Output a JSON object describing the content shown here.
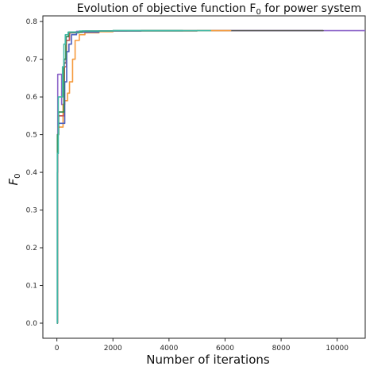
{
  "chart_data": {
    "type": "line",
    "title": "Evolution of objective function F",
    "title_sub": "0",
    "title_suffix": " for power system",
    "xlabel": "Number of iterations",
    "ylabel_main": "F",
    "ylabel_sub": "0",
    "xlim": [
      -500,
      11000
    ],
    "ylim": [
      -0.04,
      0.815
    ],
    "xticks": [
      0,
      2000,
      4000,
      6000,
      8000,
      10000
    ],
    "yticks": [
      0.0,
      0.1,
      0.2,
      0.3,
      0.4,
      0.5,
      0.6,
      0.7,
      0.8
    ],
    "xtick_labels": [
      "0",
      "2000",
      "4000",
      "6000",
      "8000",
      "10000"
    ],
    "ytick_labels": [
      "0.0",
      "0.1",
      "0.2",
      "0.3",
      "0.4",
      "0.5",
      "0.6",
      "0.7",
      "0.8"
    ],
    "grid": false,
    "legend": "none",
    "series": [
      {
        "color": "#8c64c8",
        "points": [
          [
            0,
            0
          ],
          [
            15,
            0.4
          ],
          [
            30,
            0.66
          ],
          [
            150,
            0.66
          ],
          [
            170,
            0.58
          ],
          [
            200,
            0.58
          ],
          [
            260,
            0.7
          ],
          [
            330,
            0.76
          ],
          [
            420,
            0.77
          ],
          [
            700,
            0.774
          ],
          [
            1500,
            0.775
          ],
          [
            3000,
            0.776
          ],
          [
            11000,
            0.776
          ]
        ]
      },
      {
        "color": "#555555",
        "points": [
          [
            0,
            0
          ],
          [
            20,
            0.5
          ],
          [
            60,
            0.55
          ],
          [
            200,
            0.55
          ],
          [
            260,
            0.69
          ],
          [
            330,
            0.75
          ],
          [
            450,
            0.77
          ],
          [
            800,
            0.774
          ],
          [
            2000,
            0.775
          ],
          [
            5000,
            0.776
          ],
          [
            9500,
            0.777
          ]
        ]
      },
      {
        "color": "#f59a3c",
        "points": [
          [
            0,
            0
          ],
          [
            20,
            0.5
          ],
          [
            50,
            0.52
          ],
          [
            180,
            0.52
          ],
          [
            220,
            0.58
          ],
          [
            280,
            0.59
          ],
          [
            380,
            0.61
          ],
          [
            450,
            0.64
          ],
          [
            560,
            0.7
          ],
          [
            650,
            0.75
          ],
          [
            800,
            0.765
          ],
          [
            1000,
            0.77
          ],
          [
            1500,
            0.773
          ],
          [
            2000,
            0.775
          ],
          [
            3000,
            0.776
          ],
          [
            6200,
            0.777
          ]
        ]
      },
      {
        "color": "#d15a5a",
        "points": [
          [
            0,
            0
          ],
          [
            20,
            0.5
          ],
          [
            60,
            0.55
          ],
          [
            220,
            0.55
          ],
          [
            270,
            0.68
          ],
          [
            340,
            0.75
          ],
          [
            450,
            0.772
          ],
          [
            1000,
            0.775
          ],
          [
            2500,
            0.776
          ]
        ]
      },
      {
        "color": "#4a5fc0",
        "points": [
          [
            0,
            0
          ],
          [
            20,
            0.5
          ],
          [
            60,
            0.53
          ],
          [
            220,
            0.53
          ],
          [
            280,
            0.64
          ],
          [
            350,
            0.72
          ],
          [
            430,
            0.74
          ],
          [
            520,
            0.765
          ],
          [
            700,
            0.772
          ],
          [
            1500,
            0.775
          ],
          [
            3000,
            0.776
          ]
        ]
      },
      {
        "color": "#2f8a4a",
        "points": [
          [
            0,
            0
          ],
          [
            20,
            0.5
          ],
          [
            60,
            0.56
          ],
          [
            200,
            0.56
          ],
          [
            250,
            0.7
          ],
          [
            320,
            0.76
          ],
          [
            420,
            0.772
          ],
          [
            900,
            0.775
          ],
          [
            2000,
            0.776
          ],
          [
            4500,
            0.776
          ]
        ]
      },
      {
        "color": "#3fb8a4",
        "points": [
          [
            0,
            0
          ],
          [
            15,
            0.45
          ],
          [
            50,
            0.6
          ],
          [
            150,
            0.6
          ],
          [
            200,
            0.68
          ],
          [
            250,
            0.74
          ],
          [
            300,
            0.765
          ],
          [
            400,
            0.772
          ],
          [
            800,
            0.775
          ],
          [
            2000,
            0.776
          ],
          [
            5500,
            0.776
          ]
        ]
      }
    ]
  }
}
